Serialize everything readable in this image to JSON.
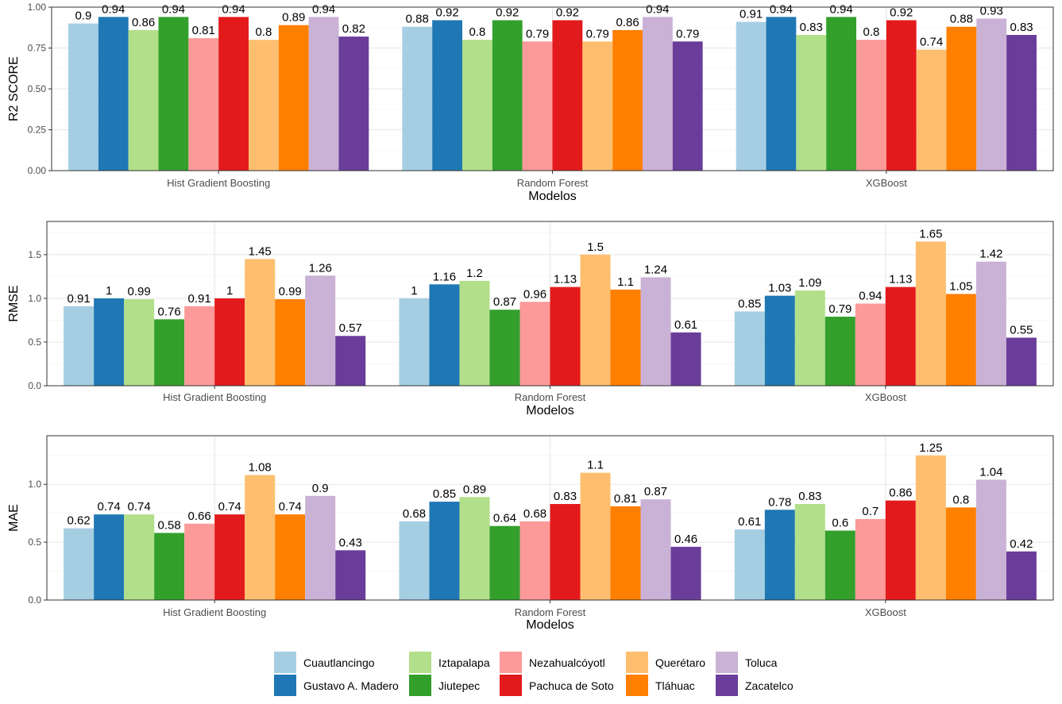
{
  "chart_data": [
    {
      "type": "bar",
      "ylabel": "R2 SCORE",
      "xlabel": "Modelos",
      "categories": [
        "Hist Gradient Boosting",
        "Random Forest",
        "XGBoost"
      ],
      "ylim": [
        0,
        1.0
      ],
      "yticks": [
        "0.00",
        "0.25",
        "0.50",
        "0.75",
        "1.00"
      ],
      "grid": true,
      "series": [
        {
          "name": "Cuautlancingo",
          "values": [
            0.9,
            0.88,
            0.91
          ]
        },
        {
          "name": "Gustavo A. Madero",
          "values": [
            0.94,
            0.92,
            0.94
          ]
        },
        {
          "name": "Iztapalapa",
          "values": [
            0.86,
            0.8,
            0.83
          ]
        },
        {
          "name": "Jiutepec",
          "values": [
            0.94,
            0.92,
            0.94
          ]
        },
        {
          "name": "Nezahualcóyotl",
          "values": [
            0.81,
            0.79,
            0.8
          ]
        },
        {
          "name": "Pachuca de Soto",
          "values": [
            0.94,
            0.92,
            0.92
          ]
        },
        {
          "name": "Querétaro",
          "values": [
            0.8,
            0.79,
            0.74
          ]
        },
        {
          "name": "Tláhuac",
          "values": [
            0.89,
            0.86,
            0.88
          ]
        },
        {
          "name": "Toluca",
          "values": [
            0.94,
            0.94,
            0.93
          ]
        },
        {
          "name": "Zacatelco",
          "values": [
            0.82,
            0.79,
            0.83
          ]
        }
      ]
    },
    {
      "type": "bar",
      "ylabel": "RMSE",
      "xlabel": "Modelos",
      "categories": [
        "Hist Gradient Boosting",
        "Random Forest",
        "XGBoost"
      ],
      "ylim": [
        0,
        1.88
      ],
      "yticks": [
        "0.0",
        "0.5",
        "1.0",
        "1.5"
      ],
      "grid": true,
      "series": [
        {
          "name": "Cuautlancingo",
          "values": [
            0.91,
            1,
            0.85
          ]
        },
        {
          "name": "Gustavo A. Madero",
          "values": [
            1,
            1.16,
            1.03
          ]
        },
        {
          "name": "Iztapalapa",
          "values": [
            0.99,
            1.2,
            1.09
          ]
        },
        {
          "name": "Jiutepec",
          "values": [
            0.76,
            0.87,
            0.79
          ]
        },
        {
          "name": "Nezahualcóyotl",
          "values": [
            0.91,
            0.96,
            0.94
          ]
        },
        {
          "name": "Pachuca de Soto",
          "values": [
            1,
            1.13,
            1.13
          ]
        },
        {
          "name": "Querétaro",
          "values": [
            1.45,
            1.5,
            1.65
          ]
        },
        {
          "name": "Tláhuac",
          "values": [
            0.99,
            1.1,
            1.05
          ]
        },
        {
          "name": "Toluca",
          "values": [
            1.26,
            1.24,
            1.42
          ]
        },
        {
          "name": "Zacatelco",
          "values": [
            0.57,
            0.61,
            0.55
          ]
        }
      ]
    },
    {
      "type": "bar",
      "ylabel": "MAE",
      "xlabel": "Modelos",
      "categories": [
        "Hist Gradient Boosting",
        "Random Forest",
        "XGBoost"
      ],
      "ylim": [
        0,
        1.42
      ],
      "yticks": [
        "0.0",
        "0.5",
        "1.0"
      ],
      "grid": true,
      "series": [
        {
          "name": "Cuautlancingo",
          "values": [
            0.62,
            0.68,
            0.61
          ]
        },
        {
          "name": "Gustavo A. Madero",
          "values": [
            0.74,
            0.85,
            0.78
          ]
        },
        {
          "name": "Iztapalapa",
          "values": [
            0.74,
            0.89,
            0.83
          ]
        },
        {
          "name": "Jiutepec",
          "values": [
            0.58,
            0.64,
            0.6
          ]
        },
        {
          "name": "Nezahualcóyotl",
          "values": [
            0.66,
            0.68,
            0.7
          ]
        },
        {
          "name": "Pachuca de Soto",
          "values": [
            0.74,
            0.83,
            0.86
          ]
        },
        {
          "name": "Querétaro",
          "values": [
            1.08,
            1.1,
            1.25
          ]
        },
        {
          "name": "Tláhuac",
          "values": [
            0.74,
            0.81,
            0.8
          ]
        },
        {
          "name": "Toluca",
          "values": [
            0.9,
            0.87,
            1.04
          ]
        },
        {
          "name": "Zacatelco",
          "values": [
            0.43,
            0.46,
            0.42
          ]
        }
      ]
    }
  ],
  "legend": {
    "placement": "bottom",
    "items": [
      {
        "label": "Cuautlancingo",
        "color": "#a6cee3"
      },
      {
        "label": "Gustavo A. Madero",
        "color": "#1f78b4"
      },
      {
        "label": "Iztapalapa",
        "color": "#b2df8a"
      },
      {
        "label": "Jiutepec",
        "color": "#33a02c"
      },
      {
        "label": "Nezahualcóyotl",
        "color": "#fb9a99"
      },
      {
        "label": "Pachuca de Soto",
        "color": "#e31a1c"
      },
      {
        "label": "Querétaro",
        "color": "#fdbf6f"
      },
      {
        "label": "Tláhuac",
        "color": "#ff7f00"
      },
      {
        "label": "Toluca",
        "color": "#cab2d6"
      },
      {
        "label": "Zacatelco",
        "color": "#6a3d9a"
      }
    ]
  }
}
